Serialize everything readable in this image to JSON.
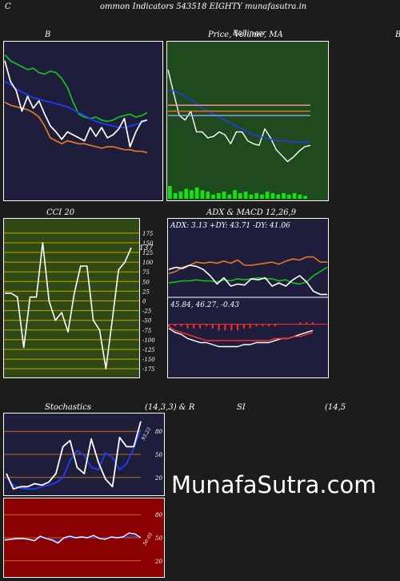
{
  "header": {
    "left_letter": "C",
    "title": "ommon  Indicators 543518  EIGHTY munafasutra.in"
  },
  "panel_titles": {
    "bollinger_label": "B",
    "price_label": "Price,  Volume,  MA",
    "price_overlay": "Ballinger",
    "right_cut": "B",
    "cci_label": "CCI 20",
    "adx_macd_label": "ADX  & MACD 12,26,9",
    "stoch_label": "Stochastics",
    "stoch_params": "(14,3,3) & R",
    "rsi_label": "SI",
    "rsi_params": "(14,5"
  },
  "watermark": "MunafaSutra.com",
  "colors": {
    "page_bg": "#1c1c1c",
    "navy_panel": "#1e1e3c",
    "green_panel": "#1e4a1e",
    "olive_panel": "#2f4a14",
    "red_panel": "#8b0000",
    "orange_line": "#e07a20",
    "green_line": "#16c216",
    "blue_line": "#1e3cff",
    "white_line": "#ffffff"
  },
  "chart_data": [
    {
      "type": "line",
      "name": "bollinger",
      "ylim": [
        0,
        100
      ],
      "series": [
        {
          "color": "#16c216",
          "values": [
            96,
            92,
            90,
            88,
            86,
            87,
            84,
            83,
            85,
            84,
            80,
            74,
            64,
            56,
            54,
            53,
            54,
            52,
            51,
            52,
            54,
            55,
            56,
            54,
            55,
            57
          ]
        },
        {
          "color": "#1e3cff",
          "values": [
            78,
            76,
            73,
            71,
            69,
            67,
            66,
            65,
            64,
            63,
            62,
            61,
            59,
            57,
            55,
            53,
            51,
            50,
            49,
            48,
            47,
            47,
            48,
            49,
            50,
            52
          ]
        },
        {
          "color": "#e07a20",
          "values": [
            64,
            62,
            61,
            60,
            59,
            57,
            54,
            48,
            40,
            38,
            36,
            38,
            37,
            36,
            36,
            35,
            34,
            33,
            34,
            34,
            33,
            32,
            32,
            31,
            31,
            30
          ]
        },
        {
          "color": "#ffffff",
          "values": [
            92,
            78,
            72,
            58,
            68,
            60,
            65,
            56,
            48,
            44,
            39,
            44,
            42,
            40,
            38,
            47,
            41,
            47,
            40,
            42,
            46,
            53,
            34,
            44,
            51,
            52
          ]
        }
      ]
    },
    {
      "type": "line",
      "name": "price_volume_ma",
      "ylim": [
        0,
        100
      ],
      "series": [
        {
          "color": "#ffffff",
          "values": [
            86,
            70,
            55,
            52,
            58,
            44,
            44,
            40,
            41,
            44,
            42,
            36,
            44,
            44,
            38,
            36,
            35,
            46,
            40,
            32,
            28,
            24,
            27,
            31,
            34,
            35
          ]
        },
        {
          "color": "#1e3cff",
          "values": [
            72,
            72,
            70,
            68,
            66,
            63,
            60,
            58,
            56,
            54,
            52,
            50,
            48,
            46,
            44,
            42,
            41,
            40,
            39,
            38,
            38,
            38,
            37,
            37,
            37,
            38
          ]
        },
        {
          "color": "#e07a20",
          "values": [
            58,
            58,
            58,
            58,
            58,
            58,
            58,
            58,
            58,
            58,
            58,
            58,
            58,
            58,
            58,
            58,
            58,
            58,
            58,
            58,
            58,
            58,
            58,
            58,
            58,
            58
          ]
        },
        {
          "color": "#ff9aa0",
          "values": [
            62,
            62,
            62,
            62,
            62,
            62,
            62,
            62,
            62,
            62,
            62,
            62,
            62,
            62,
            62,
            62,
            62,
            62,
            62,
            62,
            62,
            62,
            62,
            62,
            62,
            62
          ]
        },
        {
          "color": "#9aa0ff",
          "values": [
            55,
            55,
            55,
            55,
            55,
            55,
            55,
            55,
            55,
            55,
            55,
            55,
            55,
            55,
            55,
            55,
            55,
            55,
            55,
            55,
            55,
            55,
            55,
            55,
            55,
            55
          ]
        }
      ],
      "volume": [
        9,
        4,
        5,
        7,
        6,
        8,
        6,
        5,
        3,
        4,
        5,
        3,
        6,
        4,
        5,
        3,
        4,
        3,
        5,
        4,
        3,
        4,
        3,
        4,
        3,
        2
      ]
    },
    {
      "type": "line",
      "name": "cci",
      "y_ticks": [
        175,
        150,
        125,
        100,
        75,
        50,
        25,
        0,
        -25,
        -50,
        -75,
        -100,
        -125,
        -150,
        -175
      ],
      "ylim": [
        -185,
        185
      ],
      "last_value_label": "137",
      "series": [
        {
          "color": "#ffffff",
          "values": [
            20,
            20,
            10,
            -120,
            10,
            10,
            150,
            0,
            -50,
            -30,
            -80,
            20,
            90,
            90,
            -50,
            -75,
            -175,
            -50,
            80,
            100,
            137
          ]
        }
      ]
    },
    {
      "type": "line",
      "name": "adx",
      "ylim": [
        0,
        60
      ],
      "readout": "ADX: 3.13 +DY: 43.71 -DY: 41.06",
      "series": [
        {
          "color": "#e07a20",
          "values": [
            22,
            24,
            28,
            30,
            33,
            32,
            33,
            32,
            34,
            32,
            35,
            30,
            30,
            31,
            32,
            33,
            31,
            34,
            36,
            35,
            38,
            38,
            33,
            33
          ]
        },
        {
          "color": "#16c216",
          "values": [
            13,
            14,
            15,
            15,
            16,
            15,
            15,
            14,
            16,
            15,
            17,
            16,
            17,
            18,
            17,
            17,
            15,
            16,
            13,
            12,
            14,
            20,
            24,
            28
          ]
        },
        {
          "color": "#ffffff",
          "values": [
            26,
            28,
            27,
            30,
            29,
            26,
            20,
            12,
            18,
            10,
            12,
            11,
            17,
            16,
            18,
            10,
            13,
            10,
            16,
            20,
            14,
            5,
            2,
            2
          ]
        }
      ]
    },
    {
      "type": "line",
      "name": "macd",
      "ylim": [
        -25,
        5
      ],
      "readout": "45.84,  46.27,  -0.43",
      "series": [
        {
          "color": "#ffffff",
          "values": [
            -2,
            -4,
            -5,
            -7,
            -8,
            -9,
            -9,
            -10,
            -11,
            -11,
            -11,
            -11,
            -10,
            -10,
            -9,
            -9,
            -9,
            -8,
            -7,
            -7,
            -6,
            -5,
            -4,
            -3
          ]
        },
        {
          "color": "#ff3030",
          "values": [
            -1,
            -3,
            -4,
            -5,
            -6,
            -7,
            -8,
            -8,
            -8,
            -8,
            -8,
            -8,
            -8,
            -8,
            -8,
            -8,
            -8,
            -7,
            -7,
            -7,
            -6,
            -6,
            -5,
            -4
          ]
        }
      ],
      "histogram": [
        -1,
        -1,
        -1,
        -2,
        -2,
        -2,
        -1,
        -2,
        -3,
        -3,
        -3,
        -3,
        -2,
        -2,
        -1,
        -1,
        -1,
        -1,
        0,
        0,
        0,
        1,
        1,
        1
      ]
    },
    {
      "type": "line",
      "name": "stochastics",
      "ylim": [
        0,
        100
      ],
      "y_ticks": [
        80,
        50,
        20
      ],
      "last_value_label": "93.23",
      "series": [
        {
          "color": "#1e3cff",
          "values": [
            20,
            10,
            6,
            5,
            5,
            8,
            10,
            13,
            20,
            42,
            55,
            48,
            33,
            30,
            52,
            46,
            30,
            38,
            58,
            82
          ]
        },
        {
          "color": "#ffffff",
          "values": [
            25,
            5,
            8,
            8,
            12,
            10,
            14,
            25,
            60,
            68,
            33,
            25,
            70,
            40,
            18,
            8,
            72,
            60,
            60,
            93
          ]
        }
      ]
    },
    {
      "type": "line",
      "name": "rsi",
      "ylim": [
        0,
        100
      ],
      "y_ticks": [
        80,
        50,
        20
      ],
      "last_value_label": "50.05",
      "series": [
        {
          "color": "#1e3cff",
          "values": [
            48,
            48,
            48,
            49,
            48,
            47,
            50,
            50,
            48,
            45,
            49,
            50,
            50,
            50,
            50,
            51,
            50,
            49,
            50,
            50,
            50,
            52,
            52,
            50
          ]
        },
        {
          "color": "#ffffff",
          "values": [
            47,
            48,
            49,
            49,
            48,
            46,
            52,
            49,
            47,
            43,
            50,
            52,
            50,
            51,
            50,
            53,
            49,
            48,
            51,
            50,
            51,
            56,
            55,
            50
          ]
        }
      ]
    }
  ]
}
